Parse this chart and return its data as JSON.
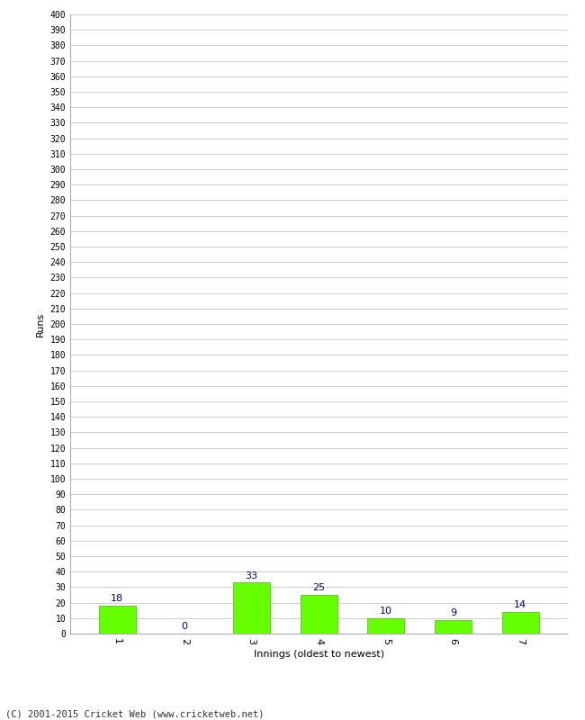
{
  "xlabel": "Innings (oldest to newest)",
  "ylabel": "Runs",
  "categories": [
    "1",
    "2",
    "3",
    "4",
    "5",
    "6",
    "7"
  ],
  "values": [
    18,
    0,
    33,
    25,
    10,
    9,
    14
  ],
  "bar_color": "#66ff00",
  "bar_edge_color": "#44bb00",
  "label_color": "#000080",
  "ytick_min": 0,
  "ytick_max": 400,
  "ytick_step": 10,
  "background_color": "#ffffff",
  "grid_color": "#cccccc",
  "footer": "(C) 2001-2015 Cricket Web (www.cricketweb.net)"
}
